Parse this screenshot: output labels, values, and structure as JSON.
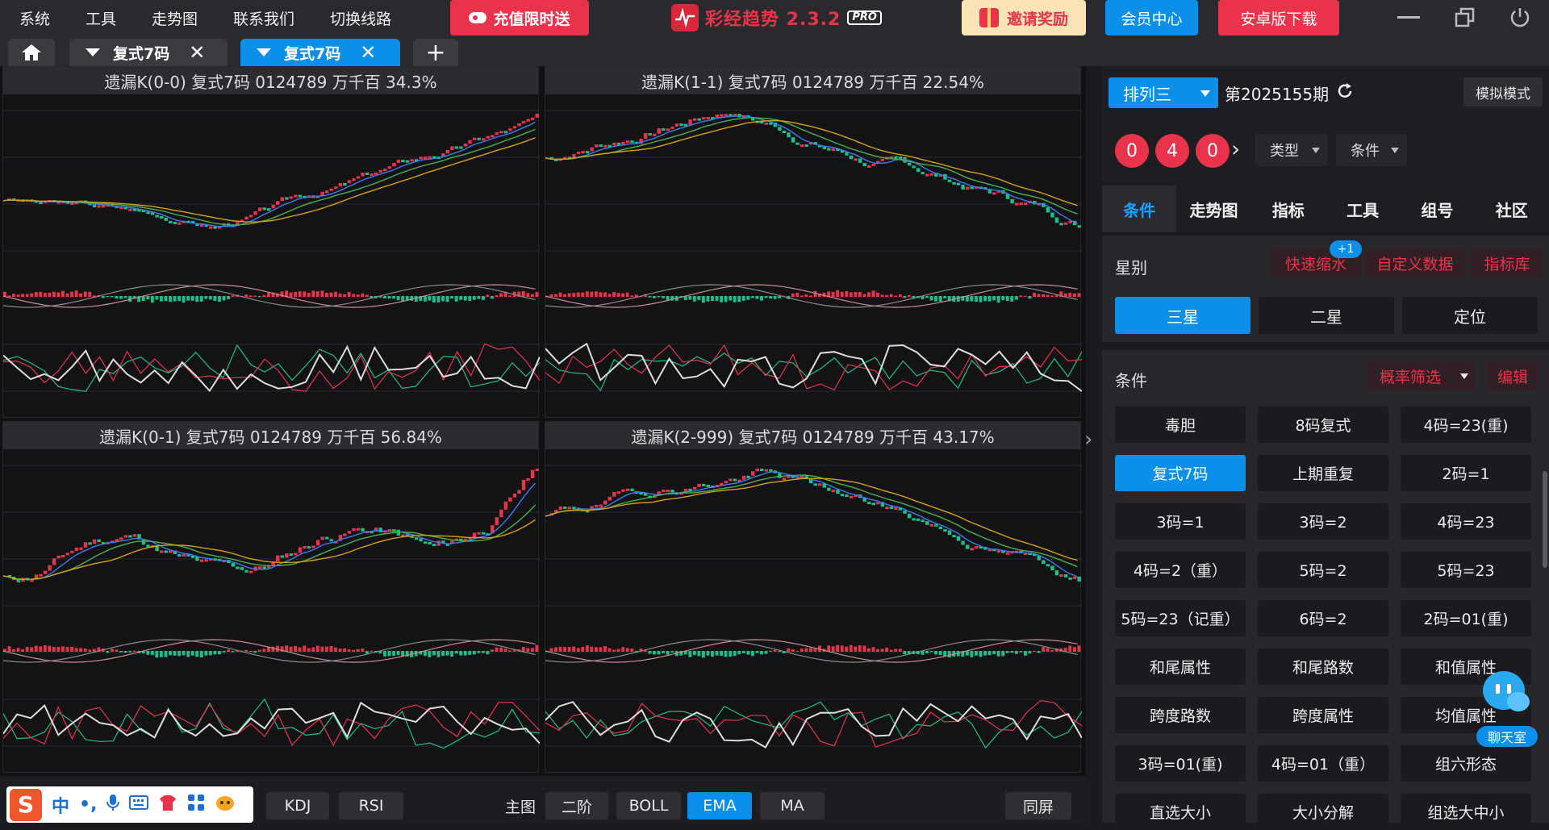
{
  "menu": [
    "系统",
    "工具",
    "走势图",
    "联系我们",
    "切换线路"
  ],
  "promo": {
    "label": "充值限时送"
  },
  "brand": {
    "name": "彩经趋势 2.3.2",
    "pro": "PRO"
  },
  "header_buttons": {
    "invite": "邀请奖励",
    "member": "会员中心",
    "android": "安卓版下载"
  },
  "tabs": [
    {
      "label": "复式7码",
      "active": false
    },
    {
      "label": "复式7码",
      "active": true
    }
  ],
  "panels": [
    {
      "title": "遗漏K(0-0)  复式7码  0124789  万千百  34.3%"
    },
    {
      "title": "遗漏K(1-1)  复式7码  0124789  万千百  22.54%"
    },
    {
      "title": "遗漏K(0-1)  复式7码  0124789  万千百  56.84%"
    },
    {
      "title": "遗漏K(2-999)  复式7码  0124789  万千百  43.17%"
    }
  ],
  "bottom": {
    "left_buttons": [
      "KDJ",
      "RSI"
    ],
    "main_label": "主图",
    "main_buttons": [
      "二阶",
      "BOLL",
      "EMA",
      "MA"
    ],
    "active_main": "EMA",
    "same_screen": "同屏"
  },
  "ime": {
    "logo": "S",
    "lang": "中",
    "punct": "•,"
  },
  "sidebar": {
    "lottery": "排列三",
    "period": "第2025155期",
    "sim_mode": "模拟模式",
    "balls": [
      "0",
      "4",
      "0"
    ],
    "dropdowns": [
      "类型",
      "条件"
    ],
    "nav_tabs": [
      "条件",
      "走势图",
      "指标",
      "工具",
      "组号",
      "社区"
    ],
    "active_nav": "条件",
    "star_section": {
      "label": "星别",
      "links": [
        "快速缩水",
        "自定义数据",
        "指标库"
      ],
      "badge": "+1",
      "stars": [
        "三星",
        "二星",
        "定位"
      ],
      "active_star": "三星"
    },
    "condition_section": {
      "label": "条件",
      "filter": "概率筛选",
      "edit": "编辑",
      "buttons": [
        "毒胆",
        "8码复式",
        "4码=23(重)",
        "复式7码",
        "上期重复",
        "2码=1",
        "3码=1",
        "3码=2",
        "4码=23",
        "4码=2（重）",
        "5码=2",
        "5码=23",
        "5码=23（记重）",
        "6码=2",
        "2码=01(重)",
        "和尾属性",
        "和尾路数",
        "和值属性",
        "跨度路数",
        "跨度属性",
        "均值属性",
        "3码=01(重)",
        "4码=01（重）",
        "组六形态",
        "直选大小",
        "大小分解",
        "组选大中小"
      ],
      "active": "复式7码"
    },
    "chat": "聊天室"
  },
  "colors": {
    "accent": "#0b8fe8",
    "red": "#e8334b",
    "green": "#1bbf8a"
  },
  "icons": [
    "home-icon",
    "chevron-down-icon",
    "close-icon",
    "plus-icon",
    "minimize-icon",
    "restore-icon",
    "power-icon",
    "refresh-icon",
    "chevron-right-icon",
    "microphone-icon",
    "keyboard-icon",
    "grid-icon"
  ]
}
